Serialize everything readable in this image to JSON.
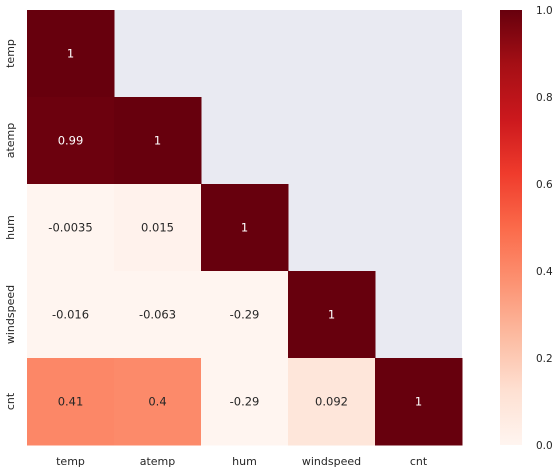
{
  "chart_data": {
    "type": "heatmap",
    "title": "",
    "xlabel": "",
    "ylabel": "",
    "rows": [
      "temp",
      "atemp",
      "hum",
      "windspeed",
      "cnt"
    ],
    "columns": [
      "temp",
      "atemp",
      "hum",
      "windspeed",
      "cnt"
    ],
    "mask": "upper-triangle",
    "values": [
      [
        1,
        null,
        null,
        null,
        null
      ],
      [
        0.99,
        1,
        null,
        null,
        null
      ],
      [
        -0.0035,
        0.015,
        1,
        null,
        null
      ],
      [
        -0.016,
        -0.063,
        -0.29,
        1,
        null
      ],
      [
        0.41,
        0.4,
        -0.29,
        0.092,
        1
      ]
    ],
    "labels": [
      [
        "1",
        "",
        "",
        "",
        ""
      ],
      [
        "0.99",
        "1",
        "",
        "",
        ""
      ],
      [
        "-0.0035",
        "0.015",
        "1",
        "",
        ""
      ],
      [
        "-0.016",
        "-0.063",
        "-0.29",
        "1",
        ""
      ],
      [
        "0.41",
        "0.4",
        "-0.29",
        "0.092",
        "1"
      ]
    ],
    "colorbar": {
      "colormap": "Reds",
      "vmin": 0,
      "vmax": 1,
      "ticks": [
        "0.0",
        "0.2",
        "0.4",
        "0.6",
        "0.8",
        "1.0"
      ]
    },
    "colors": {
      "masked_background": "#e9eaf2",
      "text_dark": "#262626",
      "text_light": "#ffffff"
    }
  }
}
